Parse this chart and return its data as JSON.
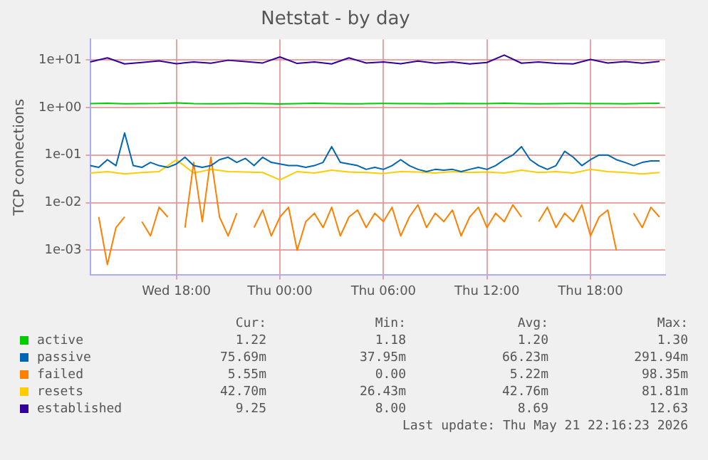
{
  "chart_data": {
    "type": "line",
    "title": "Netstat - by day",
    "ylabel": "TCP connections",
    "log": "y",
    "grid": true,
    "legend": "bottom",
    "xlim": [
      "2026-05-20T13:00",
      "2026-05-21T22:20"
    ],
    "xticks": [
      {
        "value": "2026-05-20T18:00",
        "label": "Wed 18:00"
      },
      {
        "value": "2026-05-21T00:00",
        "label": "Thu 00:00"
      },
      {
        "value": "2026-05-21T06:00",
        "label": "Thu 06:00"
      },
      {
        "value": "2026-05-21T12:00",
        "label": "Thu 12:00"
      },
      {
        "value": "2026-05-21T18:00",
        "label": "Thu 18:00"
      }
    ],
    "ylim": [
      0.0003,
      27
    ],
    "yticks": [
      {
        "value": 0.001,
        "label": "1e-03"
      },
      {
        "value": 0.01,
        "label": "1e-02"
      },
      {
        "value": 0.1,
        "label": "1e-01"
      },
      {
        "value": 1,
        "label": "1e+00"
      },
      {
        "value": 10,
        "label": "1e+01"
      }
    ],
    "series": [
      {
        "name": "active",
        "color": "#00cc00",
        "x": [
          "2026-05-20T13:00",
          "2026-05-20T14:00",
          "2026-05-20T15:00",
          "2026-05-20T16:00",
          "2026-05-20T17:00",
          "2026-05-20T18:00",
          "2026-05-20T19:00",
          "2026-05-20T20:00",
          "2026-05-20T21:00",
          "2026-05-20T22:00",
          "2026-05-20T23:00",
          "2026-05-21T00:00",
          "2026-05-21T01:00",
          "2026-05-21T02:00",
          "2026-05-21T03:00",
          "2026-05-21T04:00",
          "2026-05-21T05:00",
          "2026-05-21T06:00",
          "2026-05-21T07:00",
          "2026-05-21T08:00",
          "2026-05-21T09:00",
          "2026-05-21T10:00",
          "2026-05-21T11:00",
          "2026-05-21T12:00",
          "2026-05-21T13:00",
          "2026-05-21T14:00",
          "2026-05-21T15:00",
          "2026-05-21T16:00",
          "2026-05-21T17:00",
          "2026-05-21T18:00",
          "2026-05-21T19:00",
          "2026-05-21T20:00",
          "2026-05-21T21:00",
          "2026-05-21T22:00"
        ],
        "values": [
          1.2,
          1.22,
          1.19,
          1.2,
          1.21,
          1.25,
          1.2,
          1.19,
          1.2,
          1.21,
          1.2,
          1.18,
          1.2,
          1.22,
          1.2,
          1.19,
          1.2,
          1.21,
          1.2,
          1.2,
          1.19,
          1.21,
          1.2,
          1.2,
          1.22,
          1.2,
          1.19,
          1.2,
          1.21,
          1.2,
          1.2,
          1.19,
          1.21,
          1.22
        ]
      },
      {
        "name": "passive",
        "color": "#0066b3",
        "x": [
          "2026-05-20T13:00",
          "2026-05-20T13:30",
          "2026-05-20T14:00",
          "2026-05-20T14:30",
          "2026-05-20T15:00",
          "2026-05-20T15:30",
          "2026-05-20T16:00",
          "2026-05-20T16:30",
          "2026-05-20T17:00",
          "2026-05-20T17:30",
          "2026-05-20T18:00",
          "2026-05-20T18:30",
          "2026-05-20T19:00",
          "2026-05-20T19:30",
          "2026-05-20T20:00",
          "2026-05-20T20:30",
          "2026-05-20T21:00",
          "2026-05-20T21:30",
          "2026-05-20T22:00",
          "2026-05-20T22:30",
          "2026-05-20T23:00",
          "2026-05-20T23:30",
          "2026-05-21T00:00",
          "2026-05-21T00:30",
          "2026-05-21T01:00",
          "2026-05-21T01:30",
          "2026-05-21T02:00",
          "2026-05-21T02:30",
          "2026-05-21T03:00",
          "2026-05-21T03:30",
          "2026-05-21T04:00",
          "2026-05-21T04:30",
          "2026-05-21T05:00",
          "2026-05-21T05:30",
          "2026-05-21T06:00",
          "2026-05-21T06:30",
          "2026-05-21T07:00",
          "2026-05-21T07:30",
          "2026-05-21T08:00",
          "2026-05-21T08:30",
          "2026-05-21T09:00",
          "2026-05-21T09:30",
          "2026-05-21T10:00",
          "2026-05-21T10:30",
          "2026-05-21T11:00",
          "2026-05-21T11:30",
          "2026-05-21T12:00",
          "2026-05-21T12:30",
          "2026-05-21T13:00",
          "2026-05-21T13:30",
          "2026-05-21T14:00",
          "2026-05-21T14:30",
          "2026-05-21T15:00",
          "2026-05-21T15:30",
          "2026-05-21T16:00",
          "2026-05-21T16:30",
          "2026-05-21T17:00",
          "2026-05-21T17:30",
          "2026-05-21T18:00",
          "2026-05-21T18:30",
          "2026-05-21T19:00",
          "2026-05-21T19:30",
          "2026-05-21T20:00",
          "2026-05-21T20:30",
          "2026-05-21T21:00",
          "2026-05-21T21:30",
          "2026-05-21T22:00"
        ],
        "values": [
          0.06,
          0.055,
          0.08,
          0.06,
          0.29,
          0.06,
          0.055,
          0.07,
          0.06,
          0.055,
          0.065,
          0.09,
          0.06,
          0.055,
          0.06,
          0.08,
          0.09,
          0.07,
          0.085,
          0.06,
          0.09,
          0.07,
          0.065,
          0.06,
          0.06,
          0.055,
          0.06,
          0.07,
          0.15,
          0.07,
          0.065,
          0.06,
          0.05,
          0.055,
          0.05,
          0.06,
          0.08,
          0.06,
          0.05,
          0.045,
          0.05,
          0.048,
          0.05,
          0.045,
          0.05,
          0.055,
          0.05,
          0.06,
          0.08,
          0.1,
          0.15,
          0.08,
          0.06,
          0.05,
          0.06,
          0.12,
          0.09,
          0.06,
          0.08,
          0.1,
          0.1,
          0.08,
          0.07,
          0.06,
          0.07,
          0.075,
          0.075
        ]
      },
      {
        "name": "failed",
        "color": "#ff8000",
        "x": [
          "2026-05-20T13:30",
          "2026-05-20T14:00",
          "2026-05-20T14:30",
          "2026-05-20T15:00",
          "2026-05-20T15:30",
          "2026-05-20T16:00",
          "2026-05-20T16:30",
          "2026-05-20T17:00",
          "2026-05-20T17:30",
          "2026-05-20T18:00",
          "2026-05-20T18:30",
          "2026-05-20T19:00",
          "2026-05-20T19:30",
          "2026-05-20T20:00",
          "2026-05-20T20:30",
          "2026-05-20T21:00",
          "2026-05-20T21:30",
          "2026-05-20T22:00",
          "2026-05-20T22:30",
          "2026-05-20T23:00",
          "2026-05-20T23:30",
          "2026-05-21T00:00",
          "2026-05-21T00:30",
          "2026-05-21T01:00",
          "2026-05-21T01:30",
          "2026-05-21T02:00",
          "2026-05-21T02:30",
          "2026-05-21T03:00",
          "2026-05-21T03:30",
          "2026-05-21T04:00",
          "2026-05-21T04:30",
          "2026-05-21T05:00",
          "2026-05-21T05:30",
          "2026-05-21T06:00",
          "2026-05-21T06:30",
          "2026-05-21T07:00",
          "2026-05-21T07:30",
          "2026-05-21T08:00",
          "2026-05-21T08:30",
          "2026-05-21T09:00",
          "2026-05-21T09:30",
          "2026-05-21T10:00",
          "2026-05-21T10:30",
          "2026-05-21T11:00",
          "2026-05-21T11:30",
          "2026-05-21T12:00",
          "2026-05-21T12:30",
          "2026-05-21T13:00",
          "2026-05-21T13:30",
          "2026-05-21T14:00",
          "2026-05-21T14:30",
          "2026-05-21T15:00",
          "2026-05-21T15:30",
          "2026-05-21T16:00",
          "2026-05-21T16:30",
          "2026-05-21T17:00",
          "2026-05-21T17:30",
          "2026-05-21T18:00",
          "2026-05-21T18:30",
          "2026-05-21T19:00",
          "2026-05-21T19:30",
          "2026-05-21T20:00",
          "2026-05-21T20:30",
          "2026-05-21T21:00",
          "2026-05-21T21:30",
          "2026-05-21T22:00"
        ],
        "values": [
          0.005,
          0.0005,
          0.003,
          0.005,
          null,
          0.004,
          0.002,
          0.008,
          0.005,
          null,
          0.003,
          0.07,
          0.004,
          0.09,
          0.005,
          0.002,
          0.006,
          null,
          0.003,
          0.007,
          0.002,
          0.005,
          0.008,
          0.001,
          0.004,
          0.006,
          0.003,
          0.008,
          0.002,
          0.005,
          0.007,
          0.003,
          0.006,
          0.004,
          0.008,
          0.002,
          0.005,
          0.009,
          0.003,
          0.006,
          0.004,
          0.007,
          0.002,
          0.005,
          0.008,
          0.003,
          0.006,
          0.004,
          0.009,
          0.005,
          null,
          0.004,
          0.008,
          0.003,
          0.006,
          0.004,
          0.009,
          0.002,
          0.005,
          0.007,
          0.001,
          null,
          0.006,
          0.003,
          0.008,
          0.005
        ]
      },
      {
        "name": "resets",
        "color": "#ffcc00",
        "x": [
          "2026-05-20T13:00",
          "2026-05-20T14:00",
          "2026-05-20T15:00",
          "2026-05-20T16:00",
          "2026-05-20T17:00",
          "2026-05-20T18:00",
          "2026-05-20T19:00",
          "2026-05-20T20:00",
          "2026-05-20T21:00",
          "2026-05-20T22:00",
          "2026-05-20T23:00",
          "2026-05-21T00:00",
          "2026-05-21T01:00",
          "2026-05-21T02:00",
          "2026-05-21T03:00",
          "2026-05-21T04:00",
          "2026-05-21T05:00",
          "2026-05-21T06:00",
          "2026-05-21T07:00",
          "2026-05-21T08:00",
          "2026-05-21T09:00",
          "2026-05-21T10:00",
          "2026-05-21T11:00",
          "2026-05-21T12:00",
          "2026-05-21T13:00",
          "2026-05-21T14:00",
          "2026-05-21T15:00",
          "2026-05-21T16:00",
          "2026-05-21T17:00",
          "2026-05-21T18:00",
          "2026-05-21T19:00",
          "2026-05-21T20:00",
          "2026-05-21T21:00",
          "2026-05-21T22:00"
        ],
        "values": [
          0.042,
          0.045,
          0.04,
          0.043,
          0.045,
          0.08,
          0.042,
          0.05,
          0.045,
          0.044,
          0.043,
          0.03,
          0.045,
          0.042,
          0.048,
          0.044,
          0.043,
          0.041,
          0.045,
          0.044,
          0.042,
          0.045,
          0.043,
          0.044,
          0.042,
          0.048,
          0.043,
          0.045,
          0.042,
          0.05,
          0.045,
          0.043,
          0.04,
          0.043
        ]
      },
      {
        "name": "established",
        "color": "#330099",
        "x": [
          "2026-05-20T13:00",
          "2026-05-20T14:00",
          "2026-05-20T15:00",
          "2026-05-20T16:00",
          "2026-05-20T17:00",
          "2026-05-20T18:00",
          "2026-05-20T19:00",
          "2026-05-20T20:00",
          "2026-05-20T21:00",
          "2026-05-20T22:00",
          "2026-05-20T23:00",
          "2026-05-21T00:00",
          "2026-05-21T01:00",
          "2026-05-21T02:00",
          "2026-05-21T03:00",
          "2026-05-21T04:00",
          "2026-05-21T05:00",
          "2026-05-21T06:00",
          "2026-05-21T07:00",
          "2026-05-21T08:00",
          "2026-05-21T09:00",
          "2026-05-21T10:00",
          "2026-05-21T11:00",
          "2026-05-21T12:00",
          "2026-05-21T13:00",
          "2026-05-21T14:00",
          "2026-05-21T15:00",
          "2026-05-21T16:00",
          "2026-05-21T17:00",
          "2026-05-21T18:00",
          "2026-05-21T19:00",
          "2026-05-21T20:00",
          "2026-05-21T21:00",
          "2026-05-21T22:00"
        ],
        "values": [
          9,
          11,
          8.2,
          8.8,
          9.5,
          8.3,
          9,
          8.5,
          9.8,
          9.2,
          8.6,
          11.5,
          8.4,
          9,
          8.2,
          11,
          8.6,
          9,
          8.3,
          9.4,
          8.5,
          9,
          8.2,
          8.8,
          12.6,
          8.5,
          9,
          8.4,
          8.2,
          10.2,
          8.6,
          9.2,
          8.5,
          9.25
        ]
      }
    ],
    "annotations": [
      "Cur:",
      "Min:",
      "Avg:",
      "Max:",
      "1.22",
      "1.18",
      "1.20",
      "1.30",
      "75.69m",
      "37.95m",
      "66.23m",
      "291.94m",
      "5.55m",
      "0.00",
      "5.22m",
      "98.35m",
      "42.70m",
      "26.43m",
      "42.76m",
      "81.81m",
      "9.25",
      "8.00",
      "8.69",
      "12.63",
      "Last update: Thu May 21 22:16:23 2026"
    ]
  }
}
